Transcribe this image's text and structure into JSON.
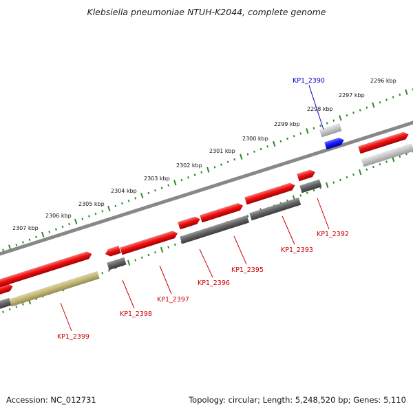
{
  "title": "Klebsiella pneumoniae NTUH-K2044, complete genome",
  "accession_text": "Accession: NC_012731",
  "topology_text": "Topology: circular; Length: 5,248,520 bp; Genes: 5,110",
  "colors": {
    "forward_gene": "#ee1111",
    "highlight_gene": "#1a1aff",
    "reverse_gene": "#666666",
    "other_gene": "#c6c6c6",
    "olive_feature": "#c2b878",
    "backbone": "#888888",
    "tick": "#2a8a2a",
    "label_red": "#cc0000",
    "label_blue": "#0000cc"
  },
  "scale_labels": [
    "2296 kbp",
    "2297 kbp",
    "2298 kbp",
    "2299 kbp",
    "2300 kbp",
    "2301 kbp",
    "2302 kbp",
    "2303 kbp",
    "2304 kbp",
    "2305 kbp",
    "2306 kbp",
    "2307 kbp"
  ],
  "gene_labels": [
    {
      "name": "KP1_2390",
      "color": "blue"
    },
    {
      "name": "KP1_2392",
      "color": "red"
    },
    {
      "name": "KP1_2393",
      "color": "red"
    },
    {
      "name": "KP1_2395",
      "color": "red"
    },
    {
      "name": "KP1_2396",
      "color": "red"
    },
    {
      "name": "KP1_2397",
      "color": "red"
    },
    {
      "name": "KP1_2398",
      "color": "red"
    },
    {
      "name": "KP1_2399",
      "color": "red"
    }
  ]
}
